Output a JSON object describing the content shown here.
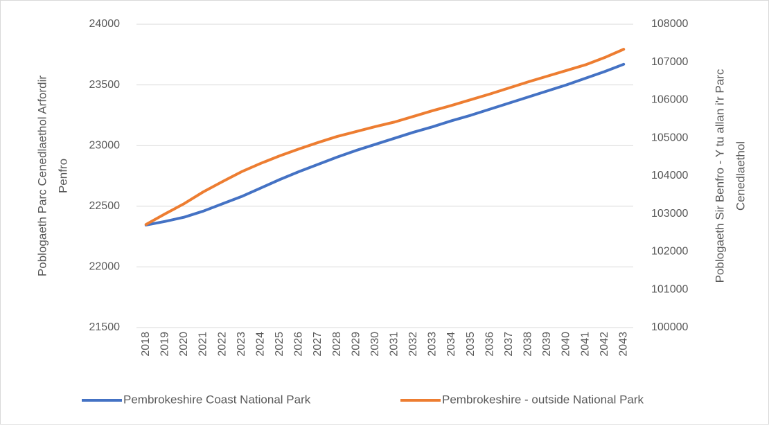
{
  "chart_data": {
    "type": "line",
    "y_label": [
      "Poblogaeth Parc Cenedlaethol Arfordir",
      "Penfro"
    ],
    "y2_label": [
      "Poblogaeth Sir Benfro - Y tu allan i'r Parc",
      "Cenedlaethol"
    ],
    "categories": [
      "2018",
      "2019",
      "2020",
      "2021",
      "2022",
      "2023",
      "2024",
      "2025",
      "2026",
      "2027",
      "2028",
      "2029",
      "2030",
      "2031",
      "2032",
      "2033",
      "2034",
      "2035",
      "2036",
      "2037",
      "2038",
      "2039",
      "2040",
      "2041",
      "2042",
      "2043"
    ],
    "series": [
      {
        "name": "Pembrokeshire Coast National Park",
        "color": "#4472c4",
        "values": [
          22345,
          22375,
          22410,
          22460,
          22520,
          22580,
          22650,
          22720,
          22785,
          22845,
          22905,
          22960,
          23010,
          23060,
          23110,
          23155,
          23205,
          23250,
          23300,
          23350,
          23400,
          23450,
          23500,
          23555,
          23610,
          23670
        ]
      },
      {
        "name": "Pembrokeshire - outside National Park",
        "color": "#ed7d31",
        "axis": "y2",
        "values": [
          102720,
          103000,
          103270,
          103580,
          103850,
          104110,
          104330,
          104530,
          104710,
          104880,
          105040,
          105170,
          105300,
          105420,
          105570,
          105720,
          105860,
          106010,
          106160,
          106320,
          106480,
          106630,
          106780,
          106930,
          107120,
          107340
        ]
      }
    ],
    "ylim": [
      21500,
      24000
    ],
    "yticks": [
      21500,
      22000,
      22500,
      23000,
      23500,
      24000
    ],
    "y2lim": [
      100000,
      108000
    ],
    "y2ticks": [
      100000,
      101000,
      102000,
      103000,
      104000,
      105000,
      106000,
      107000,
      108000
    ],
    "grid": true,
    "legend": "bottom"
  }
}
